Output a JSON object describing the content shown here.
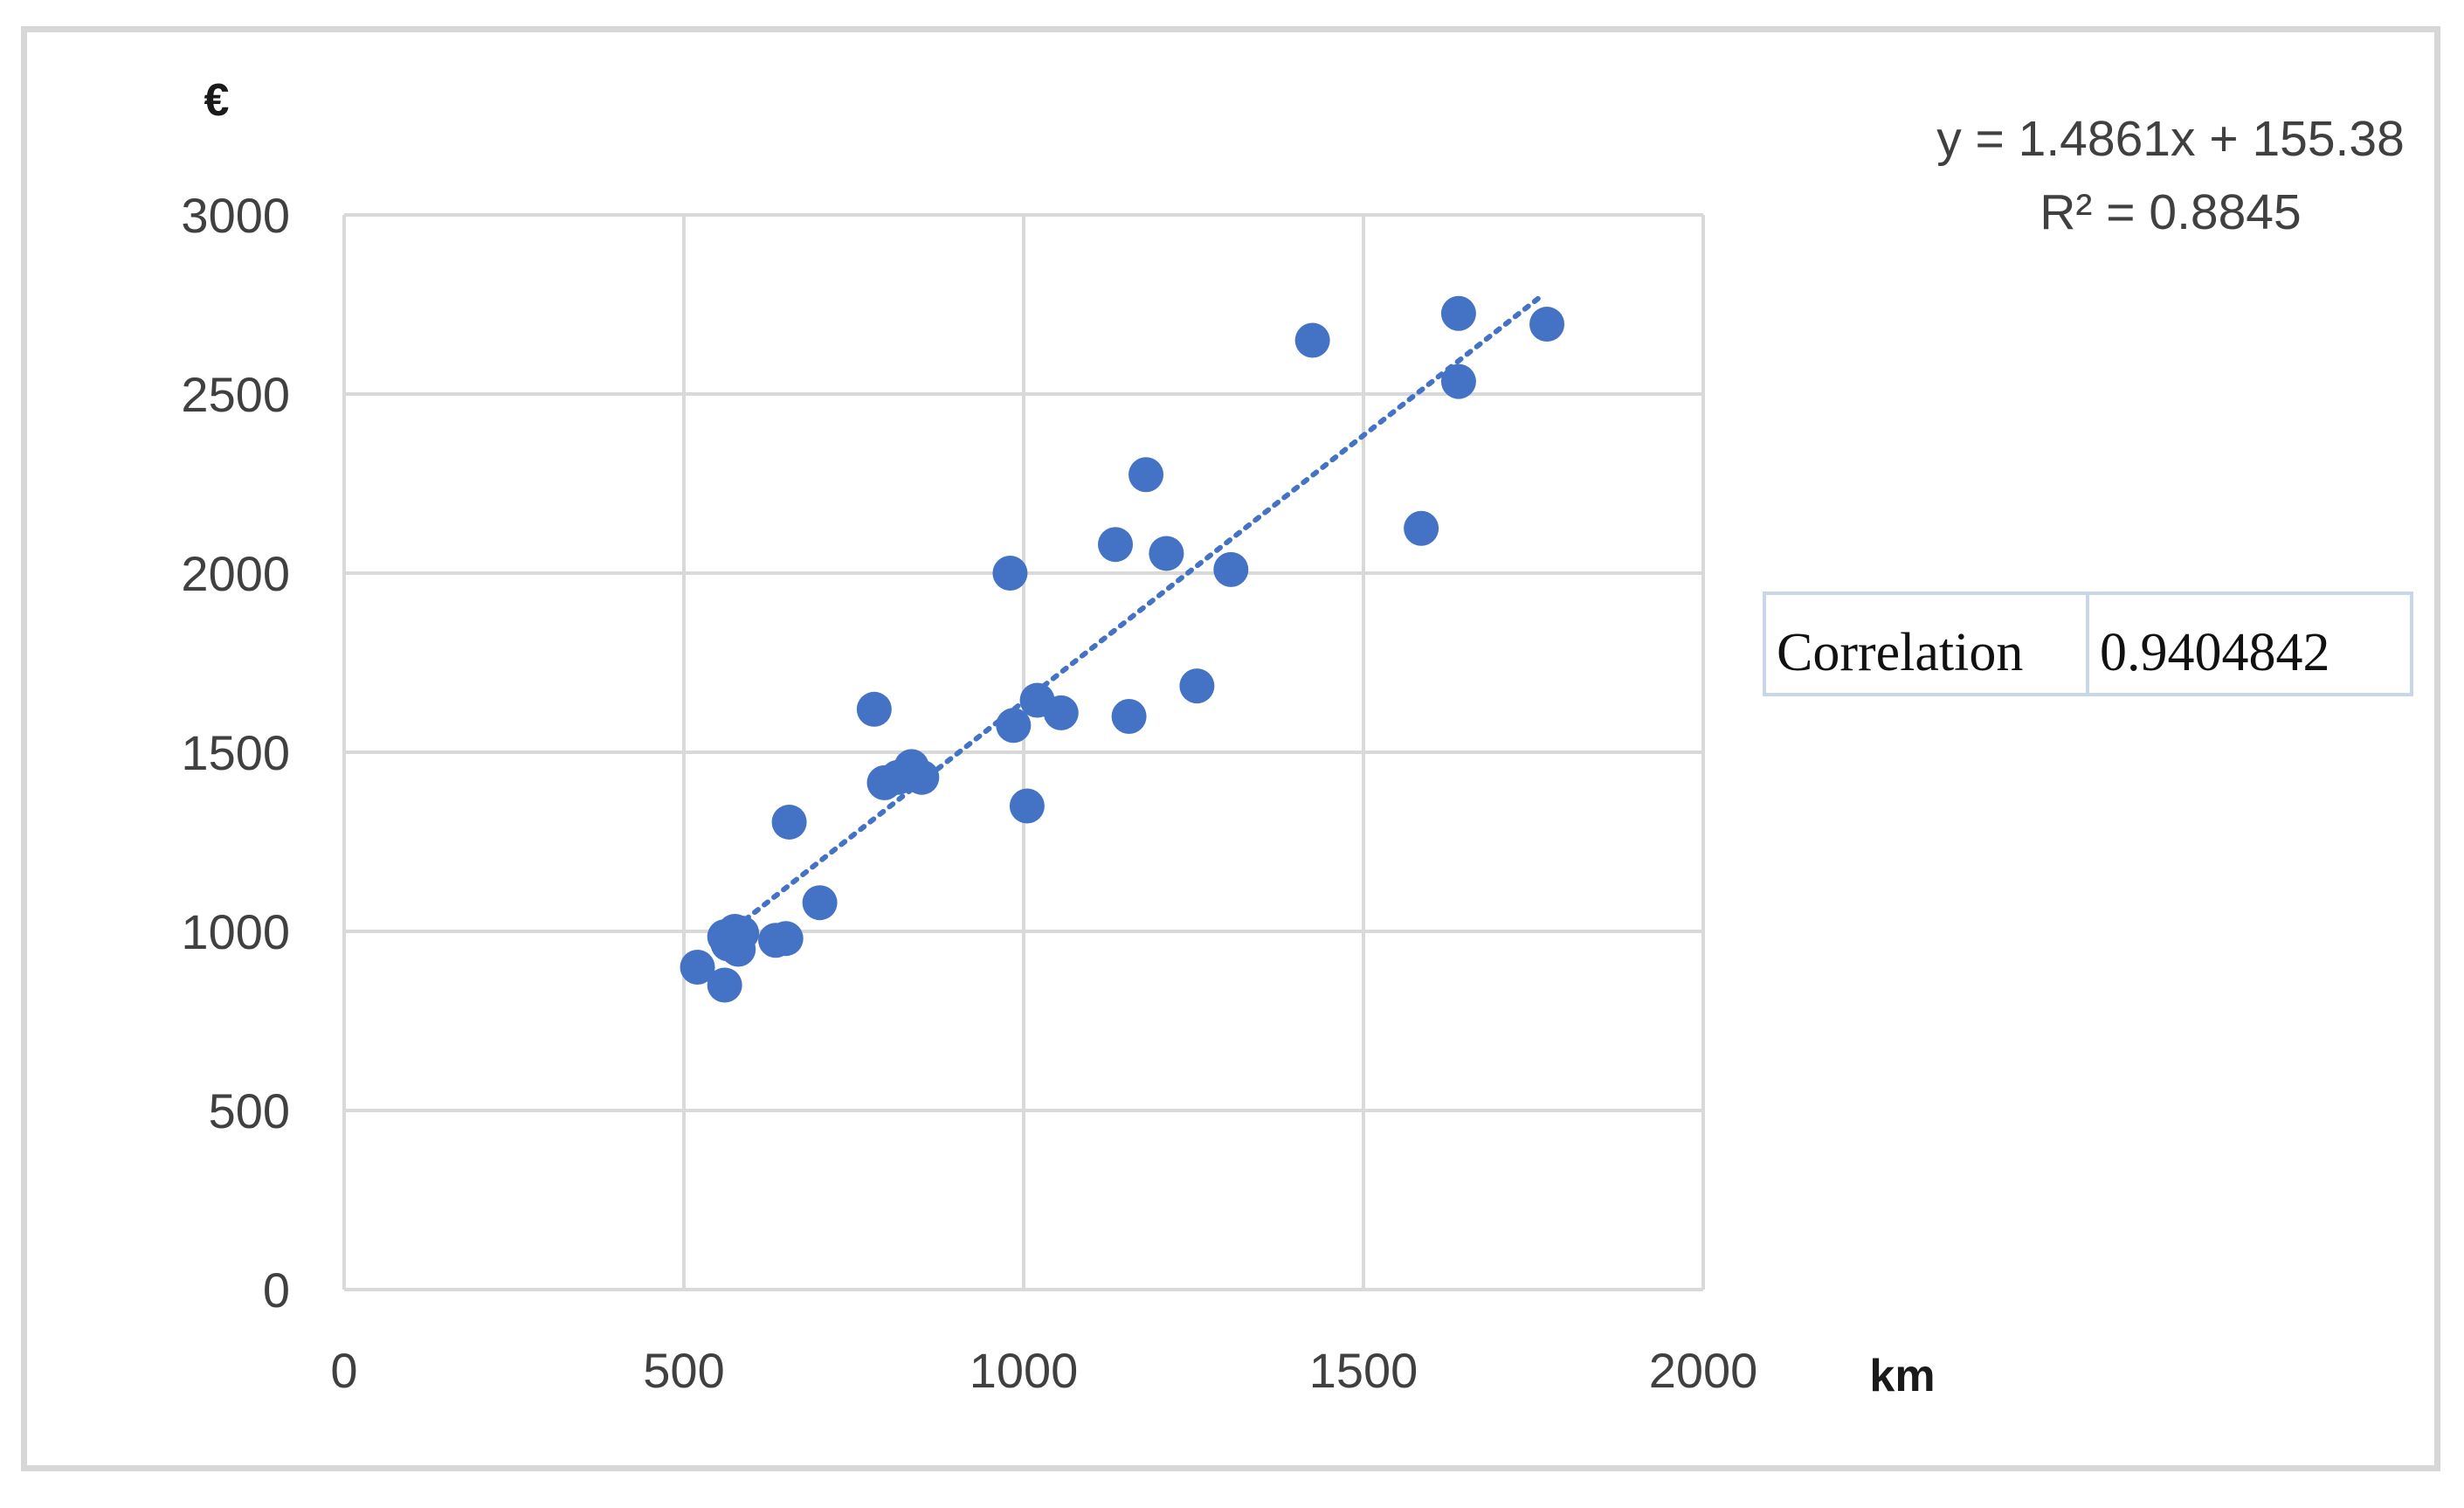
{
  "chart_data": {
    "type": "scatter",
    "xlabel": "km",
    "ylabel": "€",
    "xlim": [
      0,
      2000
    ],
    "ylim": [
      0,
      3000
    ],
    "x_ticks": [
      "0",
      "500",
      "1000",
      "1500",
      "2000"
    ],
    "y_ticks": [
      "0",
      "500",
      "1000",
      "1500",
      "2000",
      "2500",
      "3000"
    ],
    "grid": true,
    "point_color": "#4472c4",
    "trendline": {
      "type": "linear",
      "slope": 1.4861,
      "intercept": 155.38,
      "x_range": [
        590,
        1765
      ],
      "style": "dotted",
      "color": "#4472c4",
      "equation": "y = 1.4861x + 155.38",
      "r_squared": "R² = 0.8845"
    },
    "correlation": {
      "label": "Correlation",
      "value": "0.9404842"
    },
    "points": [
      {
        "x": 520,
        "y": 900
      },
      {
        "x": 560,
        "y": 850
      },
      {
        "x": 560,
        "y": 985
      },
      {
        "x": 565,
        "y": 965
      },
      {
        "x": 575,
        "y": 1000
      },
      {
        "x": 580,
        "y": 950
      },
      {
        "x": 585,
        "y": 995
      },
      {
        "x": 635,
        "y": 975
      },
      {
        "x": 650,
        "y": 980
      },
      {
        "x": 655,
        "y": 1305
      },
      {
        "x": 700,
        "y": 1080
      },
      {
        "x": 780,
        "y": 1620
      },
      {
        "x": 795,
        "y": 1415
      },
      {
        "x": 815,
        "y": 1430
      },
      {
        "x": 835,
        "y": 1460
      },
      {
        "x": 850,
        "y": 1430
      },
      {
        "x": 980,
        "y": 2000
      },
      {
        "x": 985,
        "y": 1575
      },
      {
        "x": 1005,
        "y": 1350
      },
      {
        "x": 1020,
        "y": 1645
      },
      {
        "x": 1055,
        "y": 1610
      },
      {
        "x": 1135,
        "y": 2080
      },
      {
        "x": 1155,
        "y": 1600
      },
      {
        "x": 1180,
        "y": 2275
      },
      {
        "x": 1210,
        "y": 2055
      },
      {
        "x": 1255,
        "y": 1685
      },
      {
        "x": 1305,
        "y": 2010
      },
      {
        "x": 1425,
        "y": 2650
      },
      {
        "x": 1585,
        "y": 2125
      },
      {
        "x": 1640,
        "y": 2725
      },
      {
        "x": 1640,
        "y": 2535
      },
      {
        "x": 1770,
        "y": 2695
      }
    ]
  }
}
